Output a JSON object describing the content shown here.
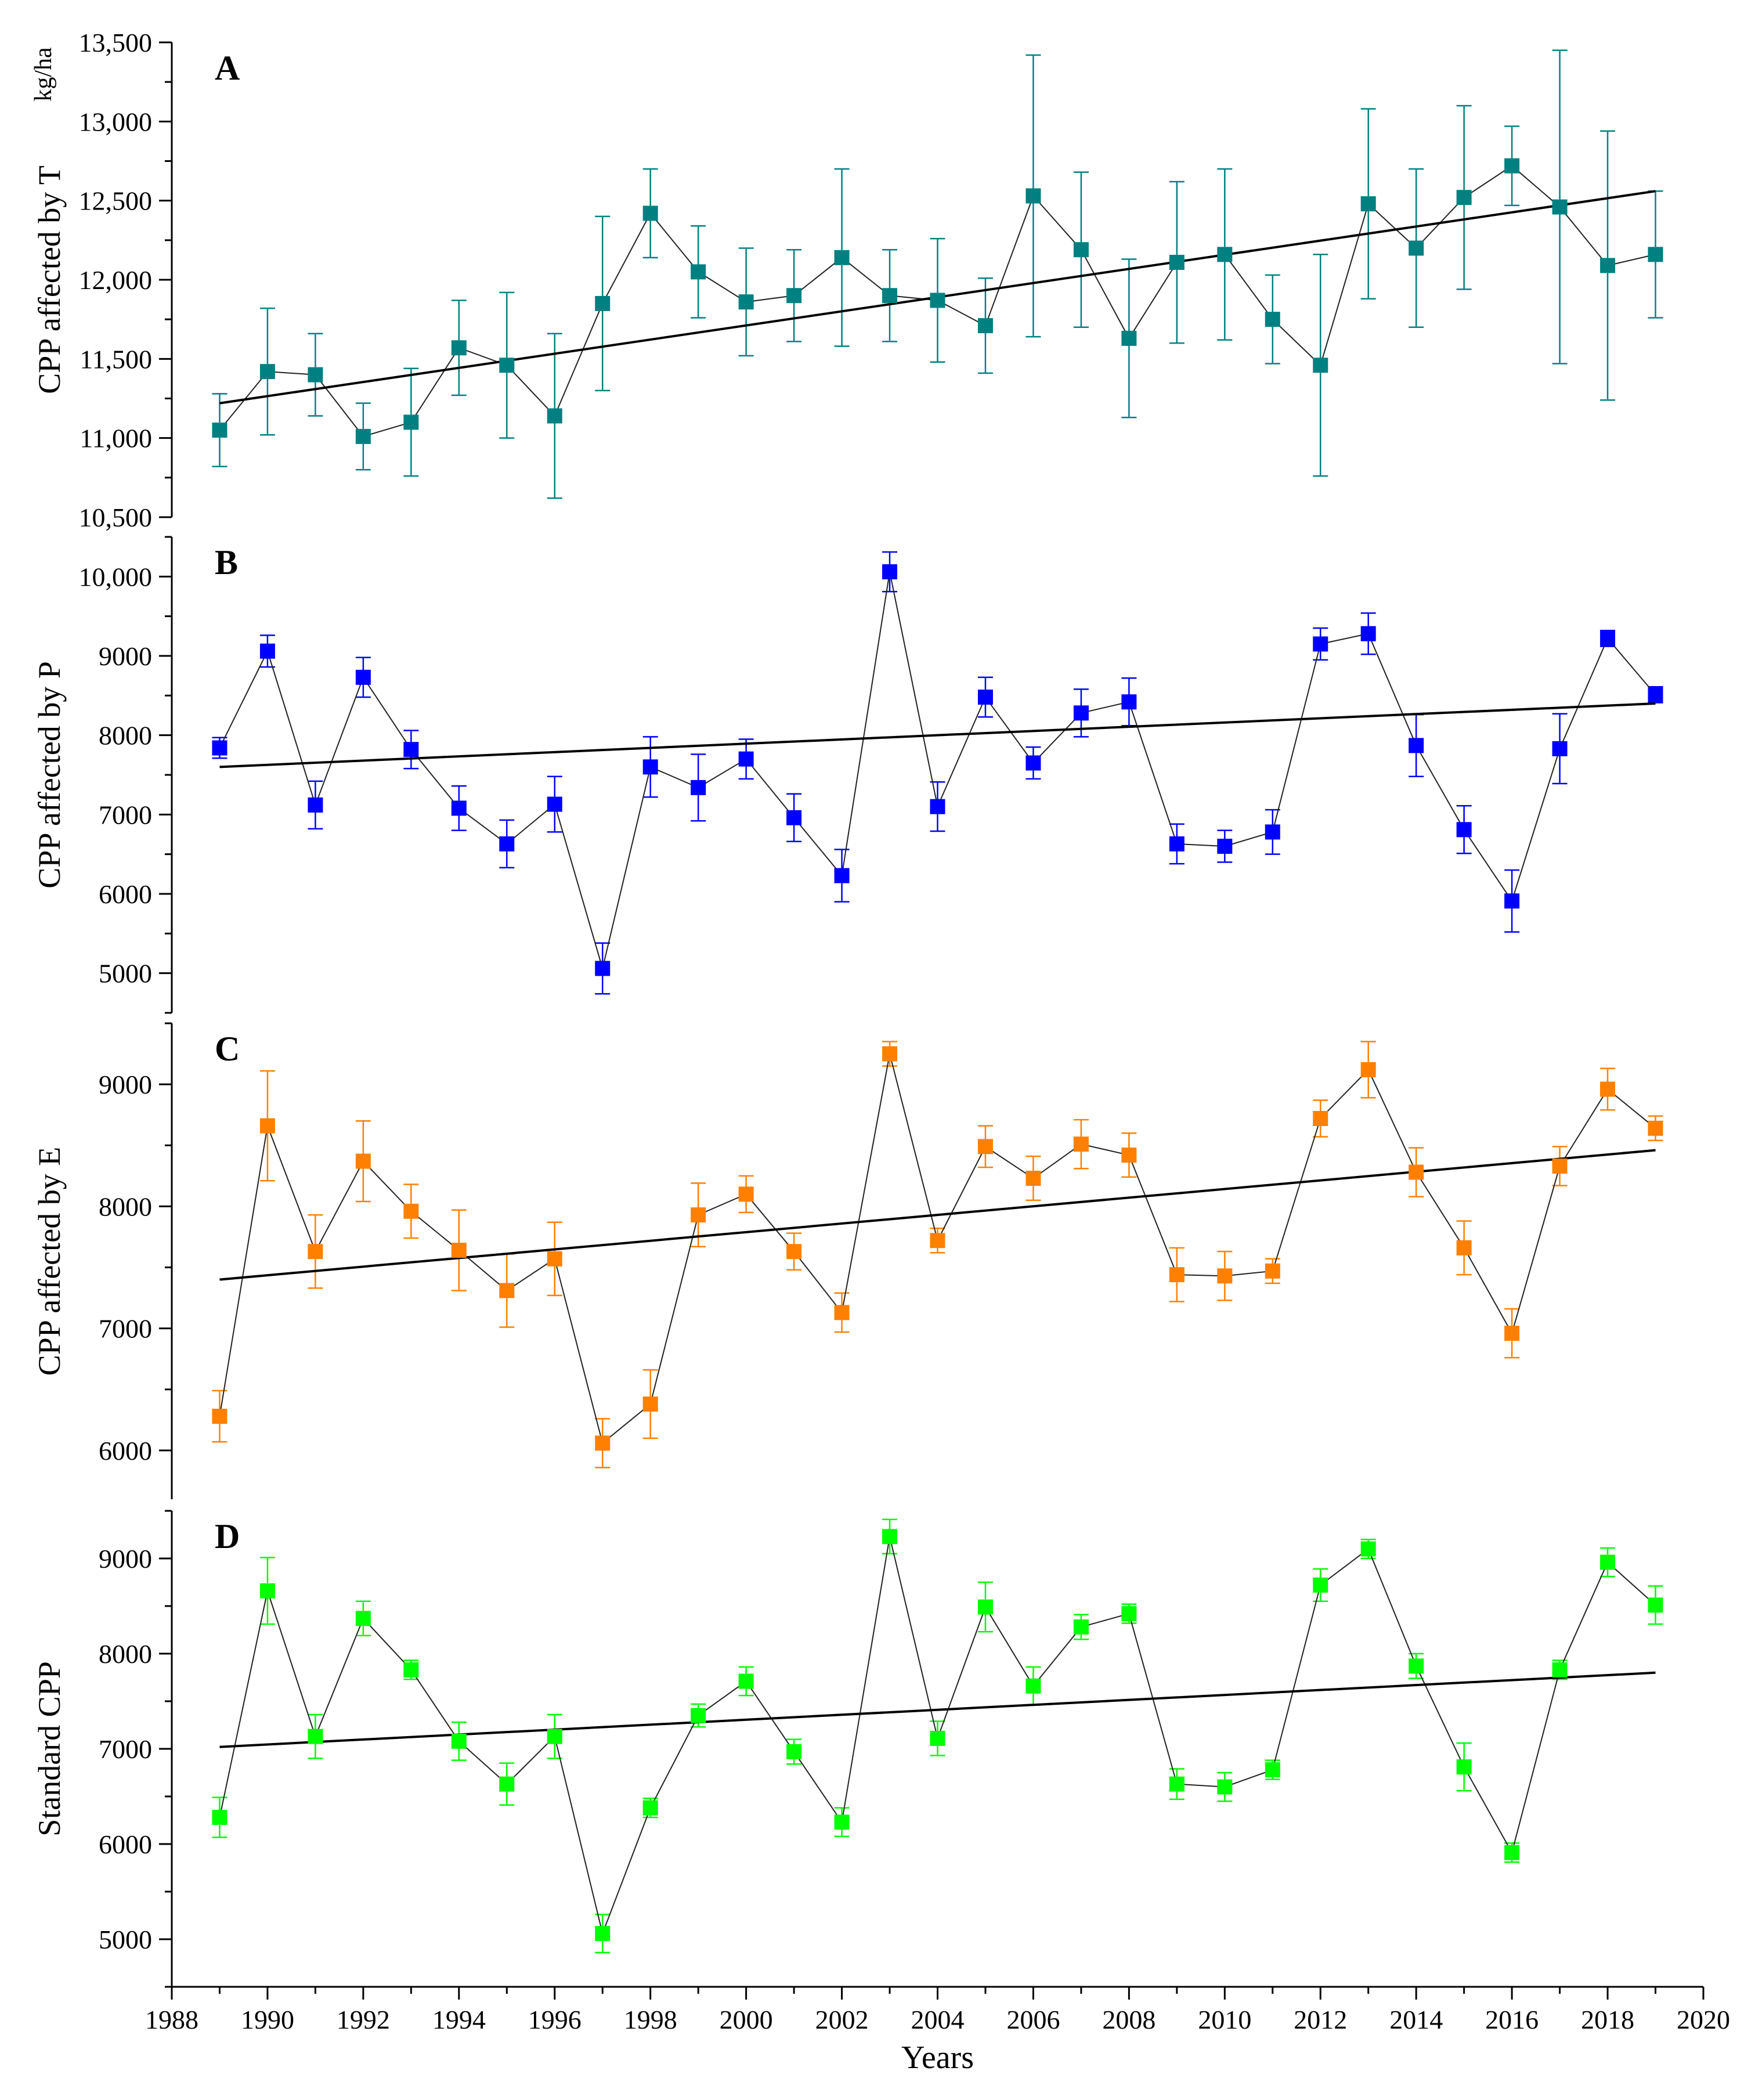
{
  "x_axis": {
    "label": "Years",
    "range": [
      1988,
      2020
    ],
    "tick_labels": [
      "1988",
      "1990",
      "1992",
      "1994",
      "1996",
      "1998",
      "2000",
      "2002",
      "2004",
      "2006",
      "2008",
      "2010",
      "2012",
      "2014",
      "2016",
      "2018",
      "2020"
    ]
  },
  "chart_data": [
    {
      "type": "scatter",
      "panel_letter": "A",
      "ylabel": "CPP affected by T",
      "ylabel_unit": "kg/ha",
      "color": "#008080",
      "ylim": [
        10500,
        13500
      ],
      "y_tick_labels": [
        "10,500",
        "11,000",
        "11,500",
        "12,000",
        "12,500",
        "13,000",
        "13,500"
      ],
      "y_tick_values": [
        10500,
        11000,
        11500,
        12000,
        12500,
        13000,
        13500
      ],
      "x": [
        1989,
        1990,
        1991,
        1992,
        1993,
        1994,
        1995,
        1996,
        1997,
        1998,
        1999,
        2000,
        2001,
        2002,
        2003,
        2004,
        2005,
        2006,
        2007,
        2008,
        2009,
        2010,
        2011,
        2012,
        2013,
        2014,
        2015,
        2016,
        2017,
        2018,
        2019
      ],
      "values": [
        11050,
        11420,
        11400,
        11010,
        11100,
        11570,
        11460,
        11140,
        11850,
        12420,
        12050,
        11860,
        11900,
        12140,
        11900,
        11870,
        11710,
        12530,
        12190,
        11630,
        12110,
        12160,
        11750,
        11460,
        12480,
        12200,
        12520,
        12720,
        12460,
        12090,
        12160
      ],
      "errors": [
        230,
        400,
        260,
        210,
        340,
        300,
        460,
        520,
        550,
        280,
        290,
        340,
        290,
        560,
        290,
        390,
        300,
        890,
        490,
        500,
        510,
        540,
        280,
        700,
        600,
        500,
        580,
        250,
        990,
        850,
        400
      ],
      "trend": {
        "x": [
          1989,
          2019
        ],
        "y": [
          11220,
          12560
        ]
      }
    },
    {
      "type": "scatter",
      "panel_letter": "B",
      "ylabel": "CPP affected by P",
      "color": "#0000ff",
      "ylim": [
        4500,
        10500
      ],
      "y_tick_labels": [
        "5000",
        "6000",
        "7000",
        "8000",
        "9000",
        "10,000"
      ],
      "y_tick_values": [
        5000,
        6000,
        7000,
        8000,
        9000,
        10000
      ],
      "x": [
        1989,
        1990,
        1991,
        1992,
        1993,
        1994,
        1995,
        1996,
        1997,
        1998,
        1999,
        2000,
        2001,
        2002,
        2003,
        2004,
        2005,
        2006,
        2007,
        2008,
        2009,
        2010,
        2011,
        2012,
        2013,
        2014,
        2015,
        2016,
        2017,
        2018,
        2019
      ],
      "values": [
        7840,
        9060,
        7120,
        8730,
        7820,
        7080,
        6630,
        7130,
        5060,
        7600,
        7340,
        7700,
        6960,
        6230,
        10060,
        7100,
        8480,
        7650,
        8280,
        8420,
        6630,
        6600,
        6780,
        9150,
        9280,
        7870,
        6810,
        5910,
        7830,
        9220,
        8510
      ],
      "errors": [
        130,
        200,
        300,
        250,
        240,
        280,
        300,
        350,
        320,
        380,
        420,
        250,
        300,
        330,
        250,
        310,
        250,
        200,
        300,
        300,
        250,
        200,
        280,
        200,
        260,
        390,
        300,
        390,
        440,
        100,
        100
      ],
      "trend": {
        "x": [
          1989,
          2019
        ],
        "y": [
          7600,
          8400
        ]
      }
    },
    {
      "type": "scatter",
      "panel_letter": "C",
      "ylabel": "CPP affected by E",
      "color": "#ff8000",
      "ylim": [
        5600,
        9500
      ],
      "y_tick_labels": [
        "6000",
        "7000",
        "8000",
        "9000"
      ],
      "y_tick_values": [
        6000,
        7000,
        8000,
        9000
      ],
      "x": [
        1989,
        1990,
        1991,
        1992,
        1993,
        1994,
        1995,
        1996,
        1997,
        1998,
        1999,
        2000,
        2001,
        2002,
        2003,
        2004,
        2005,
        2006,
        2007,
        2008,
        2009,
        2010,
        2011,
        2012,
        2013,
        2014,
        2015,
        2016,
        2017,
        2018,
        2019
      ],
      "values": [
        6280,
        8660,
        7630,
        8370,
        7960,
        7640,
        7310,
        7570,
        6060,
        6380,
        7930,
        8100,
        7630,
        7130,
        9250,
        7720,
        8490,
        8230,
        8510,
        8420,
        7440,
        7430,
        7470,
        8720,
        9120,
        8280,
        7660,
        6960,
        8330,
        8960,
        8640
      ],
      "errors": [
        210,
        450,
        300,
        330,
        220,
        330,
        300,
        300,
        200,
        280,
        260,
        150,
        150,
        160,
        100,
        100,
        170,
        180,
        200,
        180,
        220,
        200,
        100,
        150,
        230,
        200,
        220,
        200,
        160,
        170,
        100
      ],
      "trend": {
        "x": [
          1989,
          2019
        ],
        "y": [
          7400,
          8460
        ]
      }
    },
    {
      "type": "scatter",
      "panel_letter": "D",
      "ylabel": "Standard CPP",
      "color": "#00ff00",
      "ylim": [
        4500,
        9500
      ],
      "y_tick_labels": [
        "5000",
        "6000",
        "7000",
        "8000",
        "9000"
      ],
      "y_tick_values": [
        5000,
        6000,
        7000,
        8000,
        9000
      ],
      "x": [
        1989,
        1990,
        1991,
        1992,
        1993,
        1994,
        1995,
        1996,
        1997,
        1998,
        1999,
        2000,
        2001,
        2002,
        2003,
        2004,
        2005,
        2006,
        2007,
        2008,
        2009,
        2010,
        2011,
        2012,
        2013,
        2014,
        2015,
        2016,
        2017,
        2018,
        2019
      ],
      "values": [
        6280,
        8660,
        7130,
        8370,
        7830,
        7080,
        6630,
        7130,
        5060,
        6380,
        7350,
        7710,
        6970,
        6230,
        9230,
        7110,
        8490,
        7660,
        8280,
        8420,
        6630,
        6600,
        6780,
        8720,
        9100,
        7870,
        6810,
        5910,
        7830,
        8960,
        8510
      ],
      "errors": [
        210,
        350,
        230,
        180,
        100,
        200,
        220,
        230,
        200,
        100,
        120,
        150,
        130,
        150,
        180,
        180,
        260,
        200,
        130,
        100,
        160,
        150,
        100,
        170,
        100,
        130,
        250,
        100,
        100,
        150,
        200
      ],
      "trend": {
        "x": [
          1989,
          2019
        ],
        "y": [
          7020,
          7800
        ]
      }
    }
  ]
}
